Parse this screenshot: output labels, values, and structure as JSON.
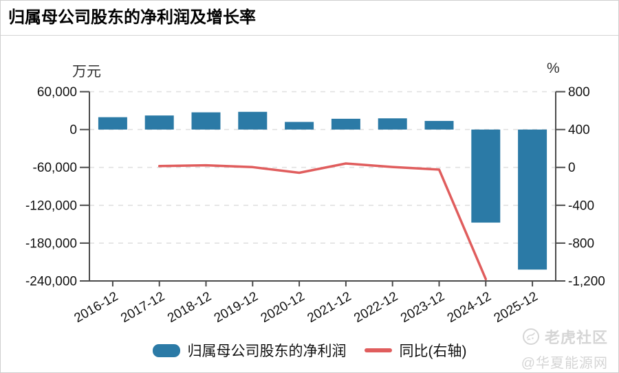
{
  "title": "归属母公司股东的净利润及增长率",
  "axes_units": {
    "left": "万元",
    "right": "%"
  },
  "chart_data": {
    "type": "bar",
    "title": "归属母公司股东的净利润及增长率",
    "xlabel": "",
    "ylabel_left": "万元",
    "ylabel_right": "%",
    "grid": true,
    "legend_position": "bottom",
    "categories": [
      "2016-12",
      "2017-12",
      "2018-12",
      "2019-12",
      "2020-12",
      "2021-12",
      "2022-12",
      "2023-12",
      "2024-12",
      "2025-12"
    ],
    "series": [
      {
        "name": "归属母公司股东的净利润",
        "type": "bar",
        "axis": "left",
        "unit": "万元",
        "color": "#2b7aa6",
        "values": [
          19600,
          22300,
          27300,
          28100,
          12100,
          17100,
          17800,
          13650,
          -147500,
          -222000
        ]
      },
      {
        "name": "同比(右轴)",
        "type": "line",
        "axis": "right",
        "unit": "%",
        "color": "#e05d5d",
        "values": [
          null,
          13.8,
          22.4,
          2.9,
          -56.9,
          41.3,
          4.1,
          -23.3,
          -1180.6,
          null
        ]
      }
    ],
    "left_axis": {
      "label": "万元",
      "min": -240000,
      "max": 60000,
      "tick_values": [
        60000,
        0,
        -60000,
        -120000,
        -180000,
        -240000
      ],
      "tick_labels": [
        "60,000",
        "0",
        "-60,000",
        "-120,000",
        "-180,000",
        "-240,000"
      ]
    },
    "right_axis": {
      "label": "%",
      "min": -1200,
      "max": 800,
      "tick_values": [
        800,
        400,
        0,
        -400,
        -800,
        -1200
      ],
      "tick_labels": [
        "800",
        "400",
        "0",
        "-400",
        "-800",
        "-1,200"
      ]
    }
  },
  "legend": {
    "items": [
      {
        "label": "归属母公司股东的净利润",
        "type": "bar",
        "color": "#2b7aa6"
      },
      {
        "label": "同比(右轴)",
        "type": "line",
        "color": "#e05d5d"
      }
    ]
  },
  "watermark": {
    "community": "老虎社区",
    "source": "@华夏能源网"
  },
  "colors": {
    "bar": "#2b7aa6",
    "line": "#e05d5d",
    "axis": "#4a4a4a",
    "grid": "#e0e0e0",
    "watermark": "#d5d5d5"
  }
}
